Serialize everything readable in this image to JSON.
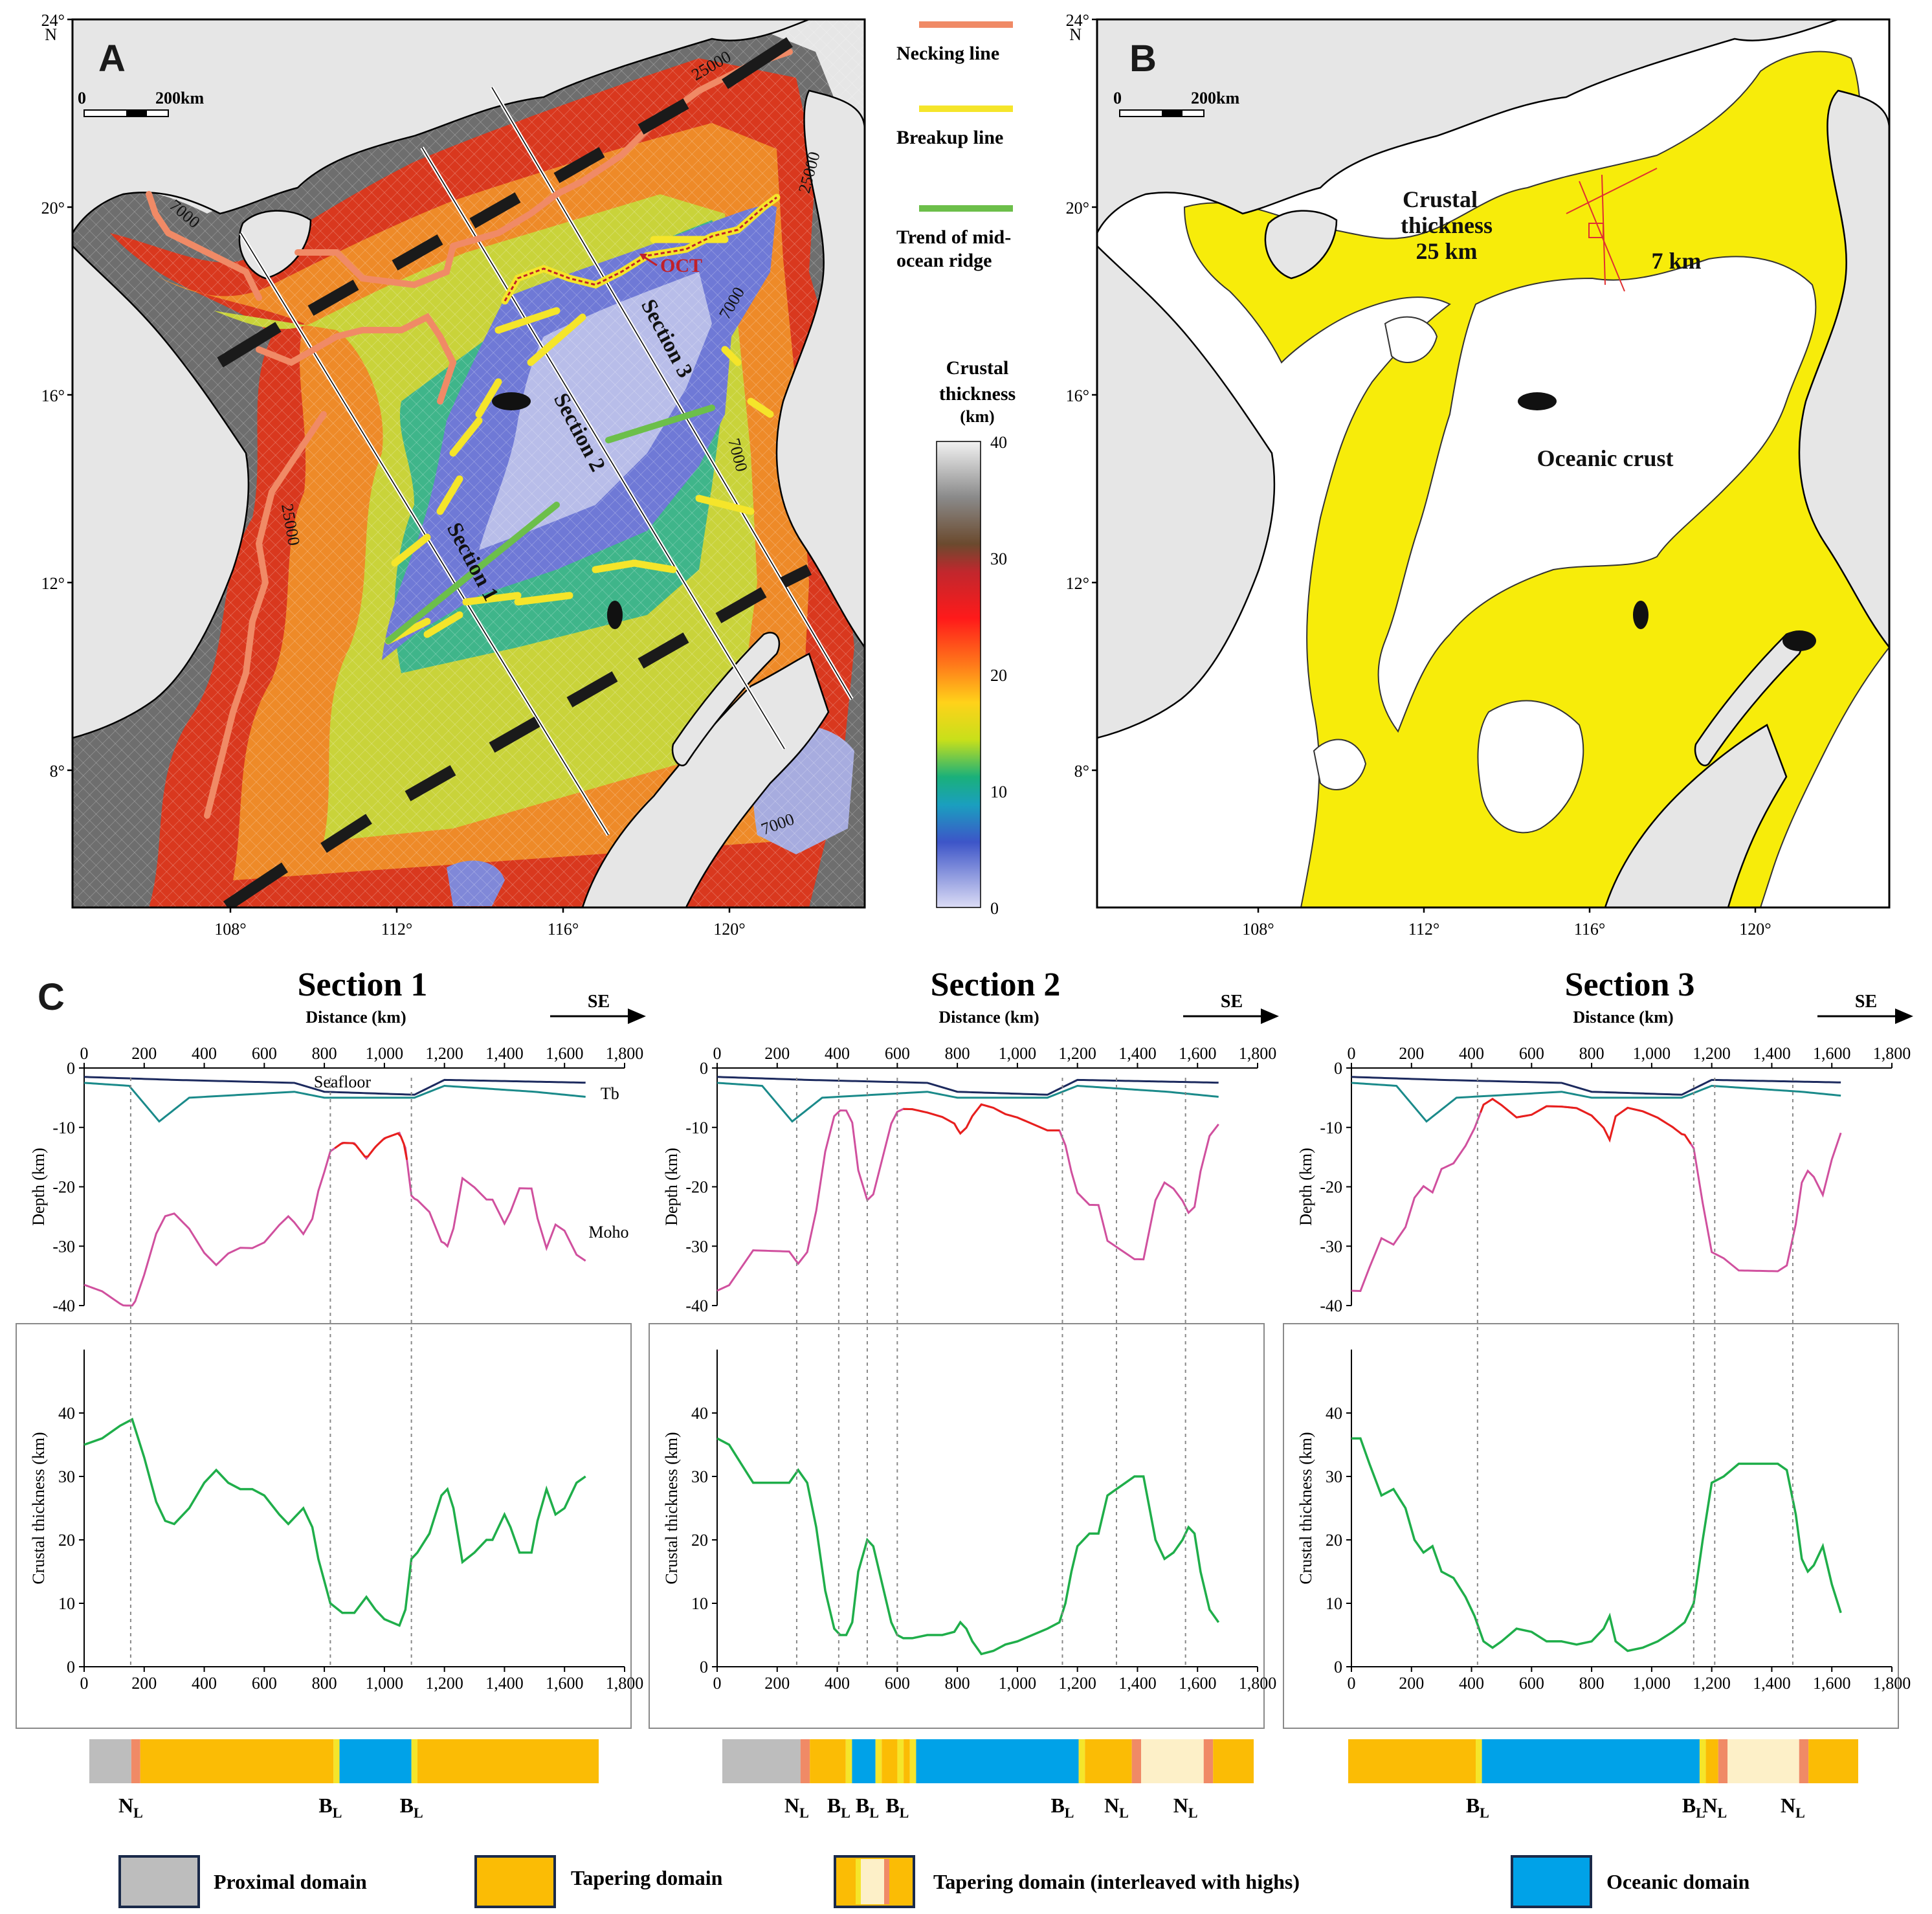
{
  "panels": {
    "a": "A",
    "b": "B",
    "c": "C"
  },
  "map_a": {
    "lat_labels": [
      "24°",
      "20°",
      "16°",
      "12°",
      "8°"
    ],
    "north_label": "N",
    "lon_labels": [
      "108°",
      "112°",
      "116°",
      "120°"
    ],
    "scale_zero": "0",
    "scale_label": "200km",
    "contours": [
      "25000",
      "25000",
      "25000",
      "7000",
      "7000",
      "7000",
      "7000"
    ],
    "section_labels": [
      "Section 1",
      "Section 2",
      "Section 3"
    ],
    "oct_label": "OCT"
  },
  "legend_lines": {
    "necking": {
      "label": "Necking  line",
      "color": "#f08a66"
    },
    "breakup": {
      "label": "Breakup  line",
      "color": "#f5e52a"
    },
    "ridge": {
      "label": "Trend of mid-\nocean ridge",
      "color": "#6cbf4a"
    },
    "ridge_l1": "Trend of mid-",
    "ridge_l2": "ocean ridge"
  },
  "colorbar": {
    "title_l1": "Crustal",
    "title_l2": "thickness",
    "title_l3": "(km)",
    "ticks": [
      "40",
      "30",
      "20",
      "10",
      "0"
    ]
  },
  "map_b": {
    "lat_labels": [
      "24°",
      "20°",
      "16°",
      "12°",
      "8°"
    ],
    "north_label": "N",
    "lon_labels": [
      "108°",
      "112°",
      "116°",
      "120°"
    ],
    "scale_zero": "0",
    "scale_label": "200km",
    "label_ct_l1": "Crustal",
    "label_ct_l2": "thickness",
    "label_ct_l3": "25 km",
    "label_7km": "7 km",
    "label_oceanic": "Oceanic crust"
  },
  "sections": [
    {
      "title": "Section 1",
      "arrow": "SE"
    },
    {
      "title": "Section 2",
      "arrow": "SE"
    },
    {
      "title": "Section 3",
      "arrow": "SE"
    }
  ],
  "axes": {
    "distance_label": "Distance (km)",
    "depth_label": "Depth (km)",
    "thickness_label": "Crustal thickness (km)",
    "x_ticks": [
      "0",
      "200",
      "400",
      "600",
      "800",
      "1,000",
      "1,200",
      "1,400",
      "1,600",
      "1,800"
    ],
    "depth_ticks": [
      "0",
      "-10",
      "-20",
      "-30",
      "-40"
    ],
    "thick_ticks": [
      "0",
      "10",
      "20",
      "30",
      "40"
    ]
  },
  "curve_labels": {
    "seafloor": "Seafloor",
    "tb": "Tb",
    "moho": "Moho"
  },
  "domain_markers": {
    "s1": [
      "N",
      "B",
      "B"
    ],
    "s2": [
      "N",
      "B",
      "B",
      "B",
      "B",
      "N",
      "N"
    ],
    "s3": [
      "B",
      "B",
      "N",
      "N"
    ],
    "subscript": "L"
  },
  "domain_legend": {
    "proximal": "Proximal domain",
    "tapering": "Tapering domain",
    "interleaved": "Tapering domain (interleaved with highs)",
    "oceanic": "Oceanic domain",
    "colors": {
      "proximal": "#bdbdbd",
      "tapering": "#fbbc05",
      "highs": "#fdf0c8",
      "oceanic": "#00a2e8",
      "necking": "#f08a66",
      "breakup": "#f5e52a"
    }
  },
  "chart_data": [
    {
      "type": "line",
      "title": "Section 1",
      "xlabel": "Distance (km)",
      "ylabel": "Crustal thickness (km)",
      "xlim": [
        0,
        1800
      ],
      "ylim": [
        0,
        50
      ],
      "series": [
        {
          "name": "Crustal thickness",
          "x": [
            0,
            60,
            120,
            160,
            200,
            240,
            270,
            300,
            350,
            400,
            440,
            480,
            520,
            560,
            600,
            650,
            680,
            710,
            730,
            760,
            780,
            820,
            860,
            900,
            940,
            970,
            1000,
            1050,
            1070,
            1090,
            1110,
            1150,
            1190,
            1210,
            1230,
            1260,
            1300,
            1340,
            1360,
            1400,
            1420,
            1450,
            1490,
            1510,
            1540,
            1570,
            1600,
            1640,
            1670
          ],
          "y": [
            35,
            36,
            38,
            39,
            33,
            26,
            23,
            22.5,
            25,
            29,
            31,
            29,
            28,
            28,
            27,
            24,
            22.5,
            24,
            25,
            22,
            17,
            10,
            8.5,
            8.5,
            11,
            9,
            7.5,
            6.5,
            9,
            17,
            18,
            21,
            27,
            28,
            25,
            16.5,
            18,
            20,
            20,
            24,
            22,
            18,
            18,
            23,
            28,
            24,
            25,
            29,
            30
          ]
        }
      ]
    },
    {
      "type": "line",
      "title": "Section 2",
      "xlabel": "Distance (km)",
      "ylabel": "Crustal thickness (km)",
      "xlim": [
        0,
        1800
      ],
      "ylim": [
        0,
        50
      ],
      "series": [
        {
          "name": "Crustal thickness",
          "x": [
            0,
            40,
            80,
            120,
            160,
            200,
            240,
            270,
            300,
            330,
            360,
            390,
            410,
            430,
            450,
            470,
            500,
            520,
            540,
            560,
            580,
            600,
            620,
            650,
            700,
            750,
            790,
            810,
            830,
            850,
            880,
            920,
            960,
            1000,
            1050,
            1100,
            1140,
            1160,
            1180,
            1200,
            1220,
            1240,
            1270,
            1300,
            1330,
            1360,
            1390,
            1420,
            1440,
            1460,
            1490,
            1520,
            1550,
            1570,
            1590,
            1610,
            1640,
            1670
          ],
          "y": [
            36,
            35,
            32,
            29,
            29,
            29,
            29,
            31,
            29,
            22,
            12,
            6,
            5,
            5,
            7,
            15,
            20,
            19,
            15,
            11,
            7,
            5,
            4.5,
            4.5,
            5,
            5,
            5.5,
            7,
            6,
            4,
            2,
            2.5,
            3.5,
            4,
            5,
            6,
            7,
            10,
            15,
            19,
            20,
            21,
            21,
            27,
            28,
            29,
            30,
            30,
            25,
            20,
            17,
            18,
            20,
            22,
            21,
            15,
            9,
            7
          ]
        }
      ]
    },
    {
      "type": "line",
      "title": "Section 3",
      "xlabel": "Distance (km)",
      "ylabel": "Crustal thickness (km)",
      "xlim": [
        0,
        1800
      ],
      "ylim": [
        0,
        50
      ],
      "series": [
        {
          "name": "Crustal thickness",
          "x": [
            0,
            30,
            60,
            100,
            140,
            180,
            210,
            240,
            270,
            300,
            340,
            380,
            410,
            440,
            470,
            500,
            550,
            600,
            650,
            700,
            750,
            800,
            840,
            860,
            880,
            920,
            970,
            1020,
            1070,
            1110,
            1140,
            1170,
            1200,
            1240,
            1290,
            1340,
            1390,
            1420,
            1450,
            1480,
            1500,
            1520,
            1540,
            1570,
            1600,
            1630
          ],
          "y": [
            36,
            36,
            32,
            27,
            28,
            25,
            20,
            18,
            19,
            15,
            14,
            11,
            8,
            4,
            3,
            4,
            6,
            5.5,
            4,
            4,
            3.5,
            4,
            6,
            8,
            4,
            2.5,
            3,
            4,
            5.5,
            7,
            10,
            20,
            29,
            30,
            32,
            32,
            32,
            32,
            31,
            24,
            17,
            15,
            16,
            19,
            13,
            8.5
          ]
        }
      ]
    }
  ]
}
